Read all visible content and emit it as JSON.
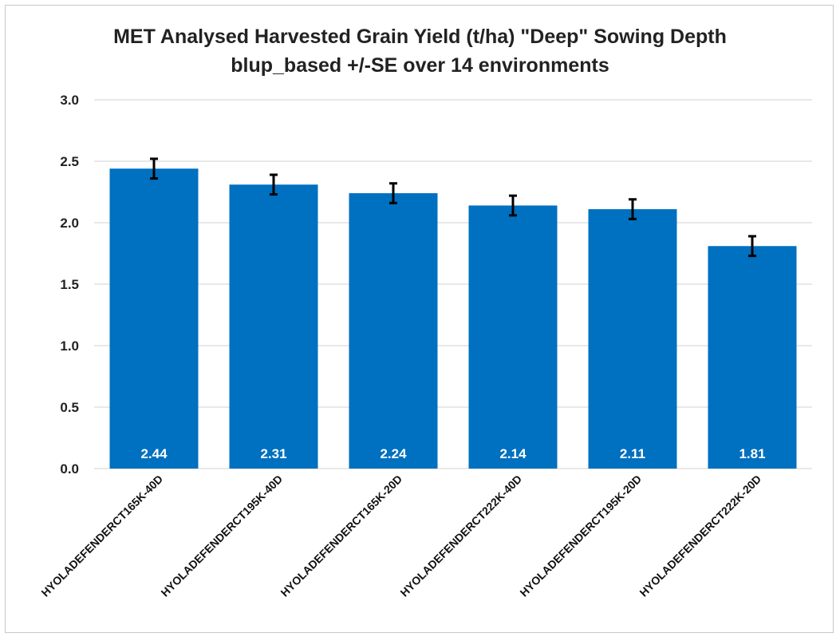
{
  "chart_data": {
    "type": "bar",
    "title": "MET Analysed Harvested Grain Yield (t/ha) \"Deep\" Sowing Depth",
    "subtitle": "blup_based +/-SE over 14 environments",
    "categories": [
      "HYOLADEFENDERCT165K-40D",
      "HYOLADEFENDERCT195K-40D",
      "HYOLADEFENDERCT165K-20D",
      "HYOLADEFENDERCT222K-40D",
      "HYOLADEFENDERCT195K-20D",
      "HYOLADEFENDERCT222K-20D"
    ],
    "values": [
      2.44,
      2.31,
      2.24,
      2.14,
      2.11,
      1.81
    ],
    "data_labels": [
      "2.44",
      "2.31",
      "2.24",
      "2.14",
      "2.11",
      "1.81"
    ],
    "error": [
      0.08,
      0.08,
      0.08,
      0.08,
      0.08,
      0.08
    ],
    "ylim": [
      0,
      3.0
    ],
    "yticks": [
      "0.0",
      "0.5",
      "1.0",
      "1.5",
      "2.0",
      "2.5",
      "3.0"
    ],
    "xlabel": "",
    "ylabel": "",
    "grid": true,
    "legend": "none",
    "bar_color": "#0070C0",
    "gridline_color": "#d9d9d9",
    "errorbar_color": "#000000"
  }
}
